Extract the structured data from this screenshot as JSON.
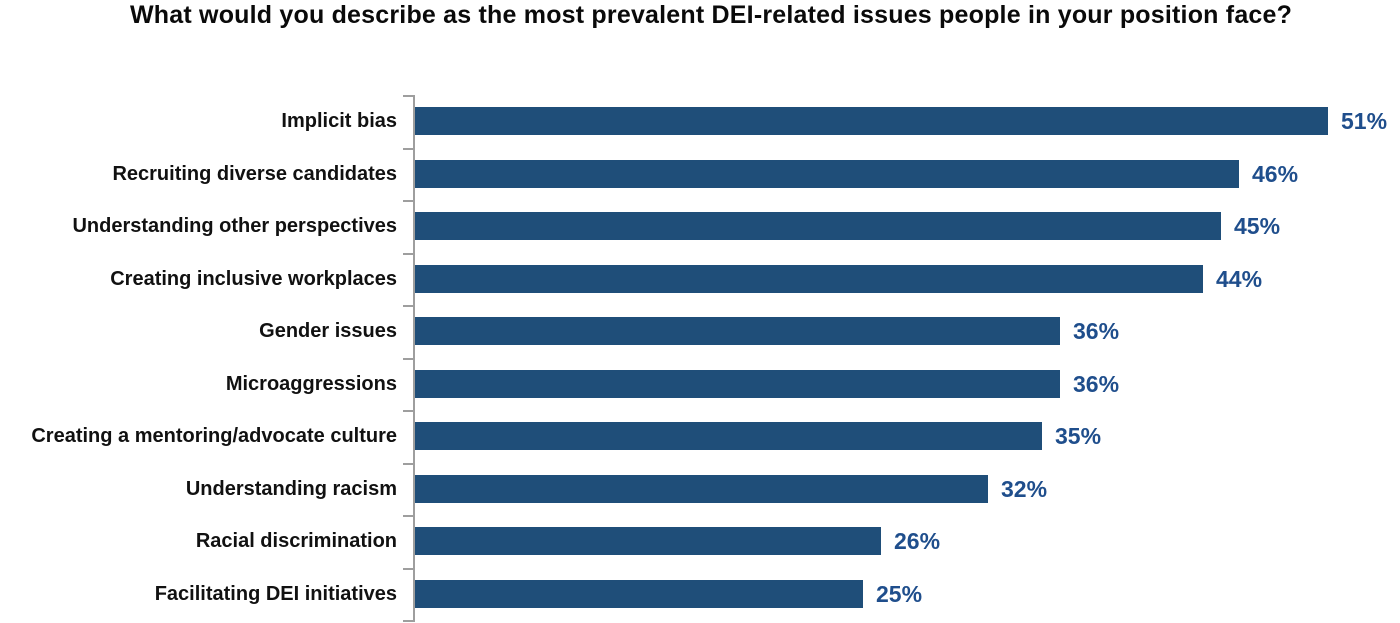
{
  "chart_data": {
    "type": "bar",
    "orientation": "horizontal",
    "title": "What would you describe as the most prevalent DEI-related issues people in your position face?",
    "categories": [
      "Implicit bias",
      "Recruiting diverse candidates",
      "Understanding other perspectives",
      "Creating inclusive workplaces",
      "Gender issues",
      "Microaggressions",
      "Creating a mentoring/advocate culture",
      "Understanding racism",
      "Racial discrimination",
      "Facilitating DEI initiatives"
    ],
    "values": [
      51,
      46,
      45,
      44,
      36,
      36,
      35,
      32,
      26,
      25
    ],
    "value_labels": [
      "51%",
      "46%",
      "45%",
      "44%",
      "36%",
      "36%",
      "35%",
      "32%",
      "26%",
      "25%"
    ],
    "unit": "%",
    "xlim": [
      0,
      55
    ],
    "grid": false,
    "legend": false,
    "data_labels_position": "outside-end",
    "colors": {
      "bar": "#1f4e79",
      "value_label": "#1f4e8c",
      "category_label": "#111111",
      "axis": "#9e9e9e",
      "title": "#0a0a0a",
      "background": "#ffffff"
    }
  }
}
